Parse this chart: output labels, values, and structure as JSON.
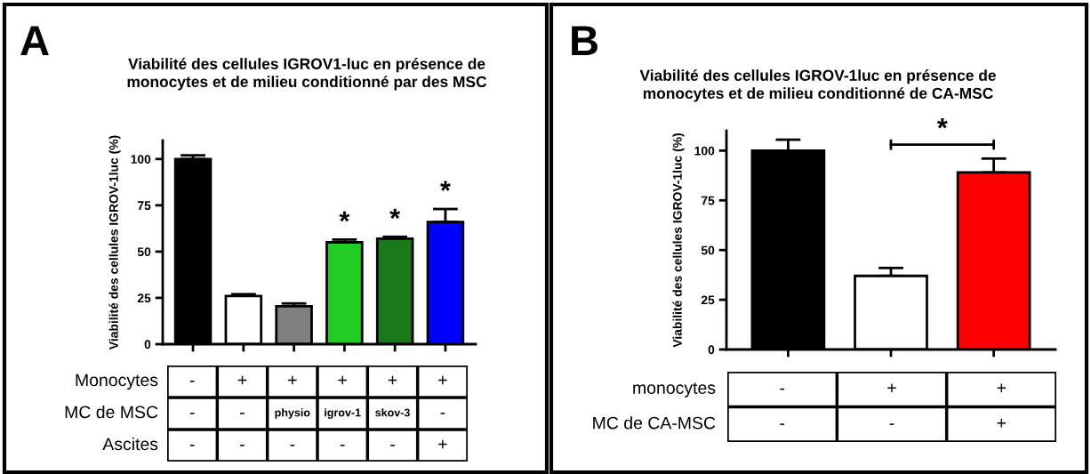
{
  "chart_data": [
    {
      "type": "bar",
      "title": "Viabilité des cellules IGROV1-luc en présence de\nmonocytes et de milieu conditionné par des MSC",
      "ylabel": "Viabilité des cellules IGROV-1luc (%)",
      "categories": [
        "-\n-\n-",
        "+\n-\n-",
        "+\nphysio\n-",
        "+\nigrov-1\n-",
        "+\nskov-3\n-",
        "+\n-\n+"
      ],
      "values": [
        100,
        26,
        20.5,
        55,
        57,
        66
      ],
      "errors": [
        2,
        1,
        1.5,
        1.5,
        1,
        7
      ],
      "colors": [
        "#000000",
        "#ffffff",
        "#808080",
        "#22cc22",
        "#1a7a1a",
        "#0000ff"
      ],
      "ylim": [
        0,
        110
      ],
      "yticks": [
        0,
        25,
        50,
        75,
        100
      ],
      "grid": false,
      "annotations": [
        "A",
        "Monocytes",
        "MC de MSC",
        "Ascites",
        "*",
        "*",
        "*"
      ]
    },
    {
      "type": "bar",
      "title": "Viabilité des cellules IGROV-1luc en présence de\nmonocytes et de milieu conditionné de CA-MSC",
      "ylabel": "Viabilité des cellules IGROV-1luc (%)",
      "categories": [
        "-\n-",
        "+\n-",
        "+\n+"
      ],
      "values": [
        100,
        37,
        89
      ],
      "errors": [
        5.5,
        4,
        7
      ],
      "colors": [
        "#000000",
        "#ffffff",
        "#ff0000"
      ],
      "ylim": [
        0,
        110
      ],
      "yticks": [
        0,
        25,
        50,
        75,
        100
      ],
      "grid": false,
      "annotations": [
        "B",
        "monocytes",
        "MC de CA-MSC",
        "*"
      ]
    }
  ]
}
